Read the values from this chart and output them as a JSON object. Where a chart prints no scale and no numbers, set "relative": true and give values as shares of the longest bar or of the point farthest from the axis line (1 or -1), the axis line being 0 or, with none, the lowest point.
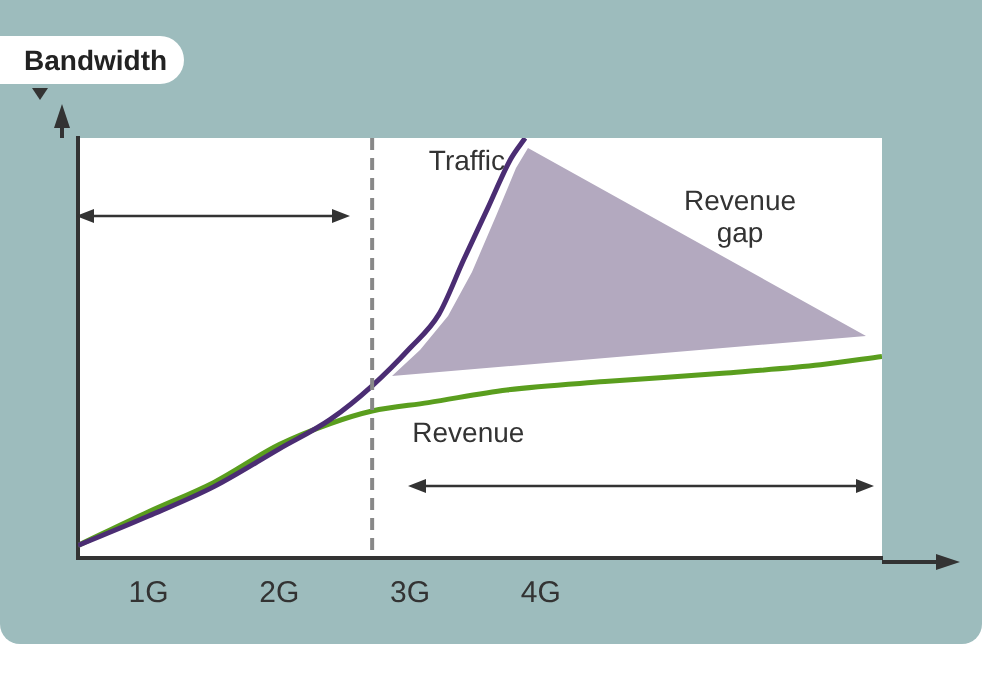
{
  "chart_data": {
    "type": "line",
    "relative": true,
    "ylabel": "Bandwidth",
    "annotations": [
      "Revenue gap"
    ],
    "xlim": [
      0.46,
      6.61
    ],
    "xticks": [
      {
        "value": 1,
        "label": "1G"
      },
      {
        "value": 2,
        "label": "2G"
      },
      {
        "value": 3,
        "label": "3G"
      },
      {
        "value": 4,
        "label": "4G"
      }
    ],
    "ref_lines": [
      {
        "axis": "x",
        "value": 2.71,
        "color": "#888888",
        "line_style": "dashed"
      }
    ],
    "grid": false,
    "legend": false,
    "marker": "none",
    "line_style": "solid",
    "series": [
      {
        "name": "Traffic",
        "color": "#4b2d73",
        "x": [
          0.46,
          1.0,
          1.5,
          2.0,
          2.39,
          2.71,
          3.0,
          3.22,
          3.41,
          3.59,
          3.77,
          3.88
        ],
        "values": [
          0.03,
          0.1,
          0.17,
          0.26,
          0.33,
          0.41,
          0.5,
          0.58,
          0.71,
          0.83,
          0.95,
          1
        ]
      },
      {
        "name": "Revenue",
        "color": "#5a9e1e",
        "x": [
          0.46,
          1.0,
          1.5,
          2.0,
          2.39,
          2.71,
          3.14,
          3.74,
          4.49,
          5.39,
          6.14,
          6.61
        ],
        "values": [
          0.03,
          0.11,
          0.18,
          0.27,
          0.32,
          0.35,
          0.37,
          0.4,
          0.42,
          0.44,
          0.46,
          0.48
        ]
      }
    ]
  }
}
